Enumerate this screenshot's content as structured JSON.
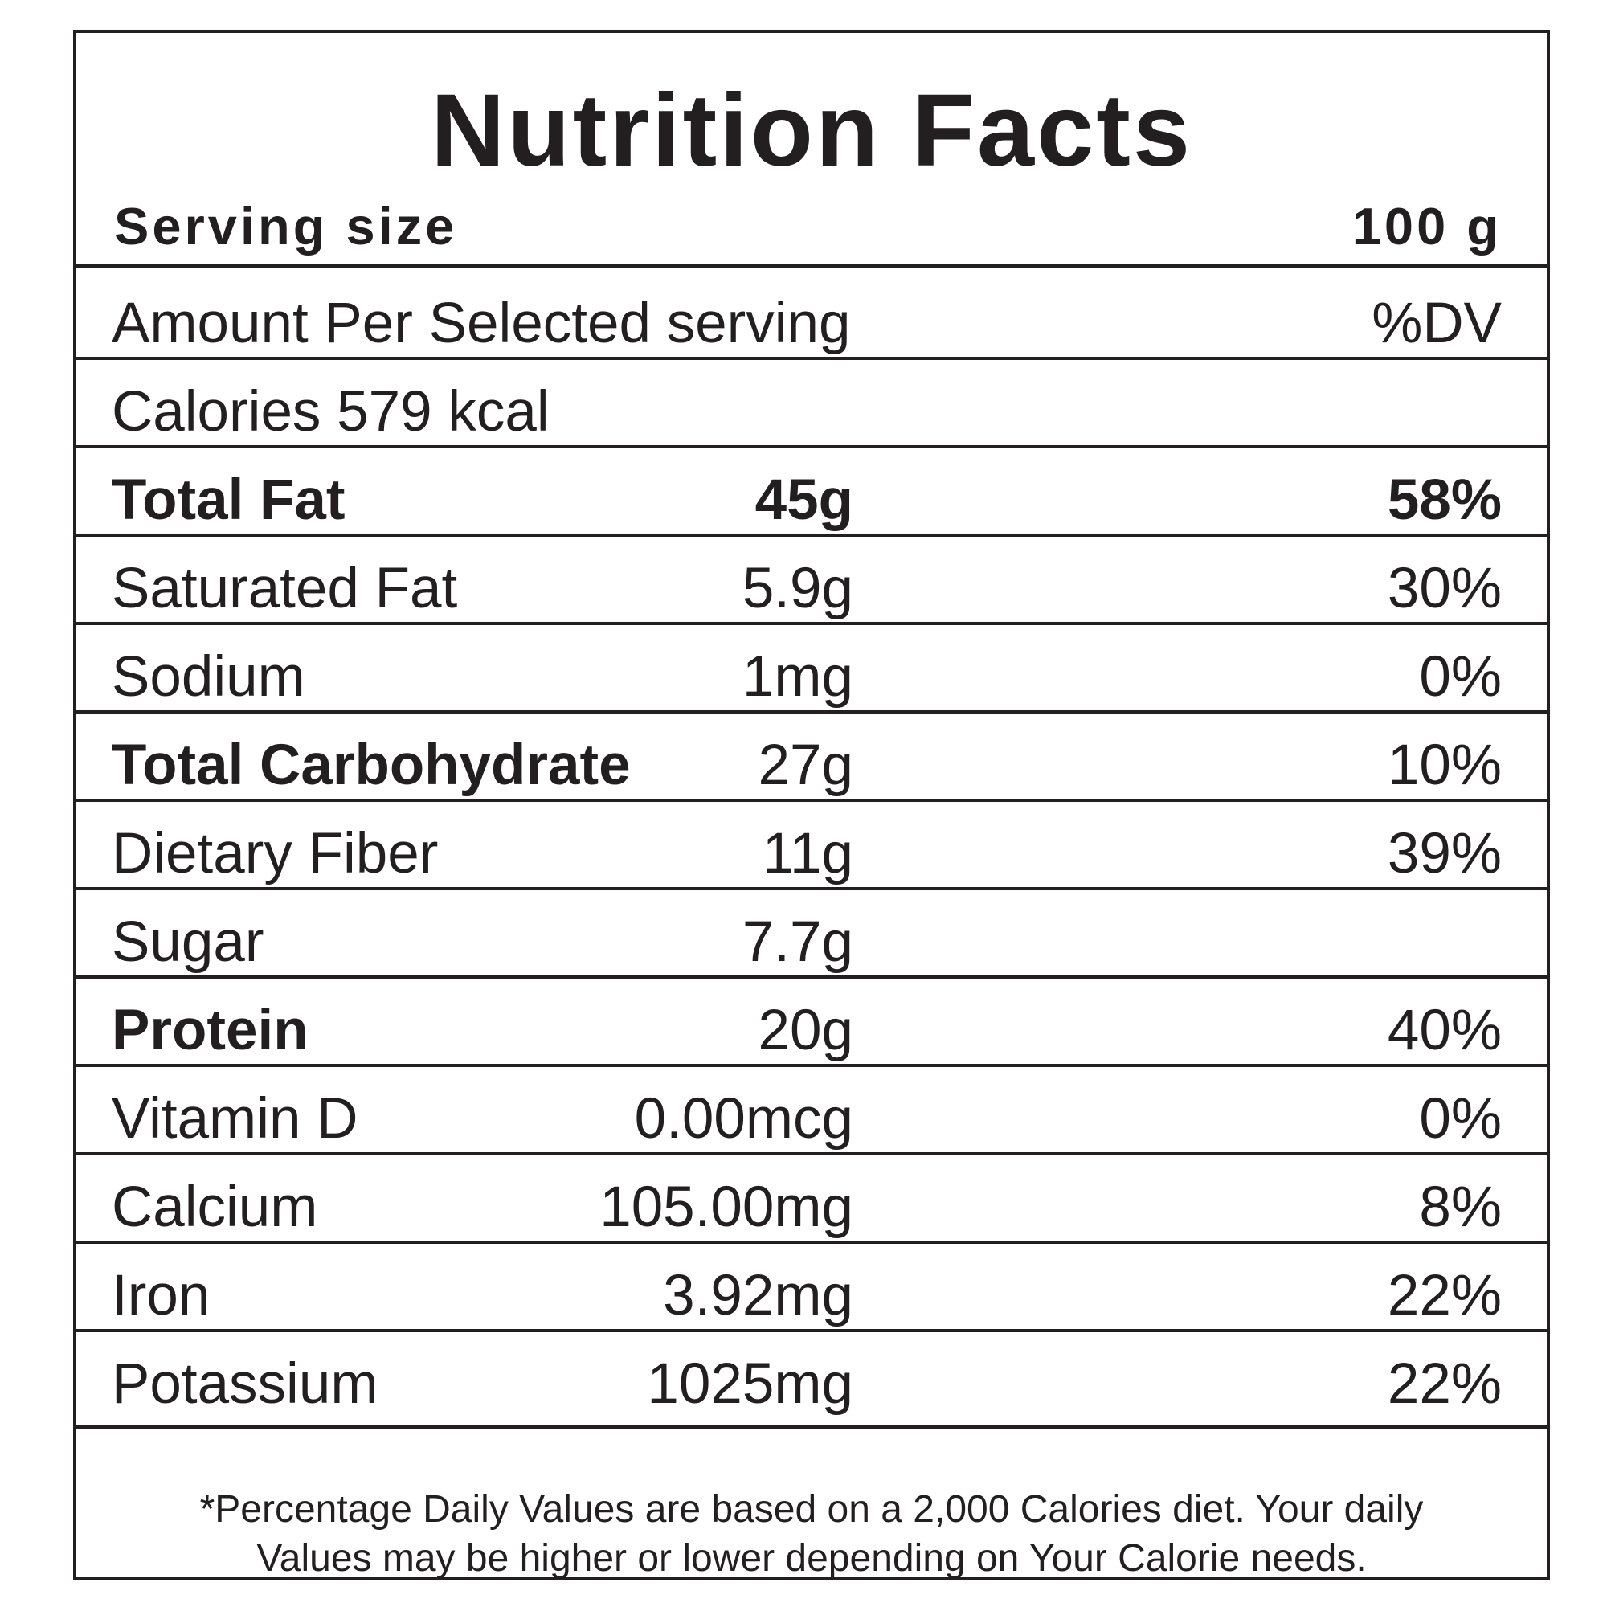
{
  "title": "Nutrition Facts",
  "serving": {
    "label": "Serving size",
    "value": "100 g"
  },
  "header": {
    "amount_label": "Amount Per Selected serving",
    "dv_label": "%DV"
  },
  "calories": {
    "text": "Calories 579 kcal"
  },
  "nutrients": [
    {
      "name": "Total Fat",
      "amount": "45g",
      "dv": "58%",
      "bold": true
    },
    {
      "name": "Saturated Fat",
      "amount": "5.9g",
      "dv": "30%",
      "bold": false
    },
    {
      "name": "Sodium",
      "amount": "1mg",
      "dv": "0%",
      "bold": false
    },
    {
      "name": "Total Carbohydrate",
      "amount": "27g",
      "dv": "10%",
      "bold": true
    },
    {
      "name": "Dietary Fiber",
      "amount": "11g",
      "dv": "39%",
      "bold": false
    },
    {
      "name": "Sugar",
      "amount": "7.7g",
      "dv": "",
      "bold": false
    },
    {
      "name": "Protein",
      "amount": "20g",
      "dv": "40%",
      "bold": true
    },
    {
      "name": "Vitamin D",
      "amount": "0.00mcg",
      "dv": "0%",
      "bold": false
    },
    {
      "name": "Calcium",
      "amount": "105.00mg",
      "dv": "8%",
      "bold": false
    },
    {
      "name": "Iron",
      "amount": "3.92mg",
      "dv": "22%",
      "bold": false
    },
    {
      "name": "Potassium",
      "amount": "1025mg",
      "dv": "22%",
      "bold": false
    }
  ],
  "footnote": {
    "line1": "*Percentage Daily Values are based on a 2,000 Calories diet. Your daily",
    "line2": "Values may be higher or lower depending on Your Calorie needs."
  },
  "colors": {
    "text": "#231f20",
    "border": "#231f20",
    "background": "#ffffff"
  }
}
